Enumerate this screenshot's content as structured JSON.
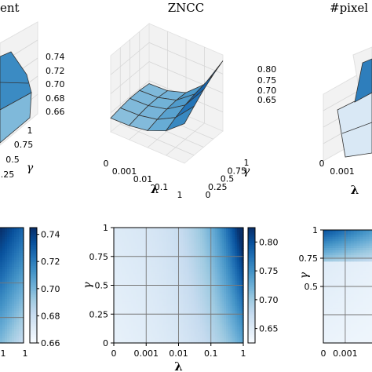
{
  "chart_data": [
    {
      "type": "surface3d",
      "panel": "left",
      "title": "ent",
      "zlim": [
        0.66,
        0.74
      ],
      "ztick_labels": [
        "0.74",
        "0.72",
        "0.70",
        "0.68",
        "0.66"
      ],
      "gamma_tick_labels": [
        "1",
        "0.75",
        "0.5",
        "0.25"
      ],
      "gamma_label": "γ",
      "colormap": "Blues"
    },
    {
      "type": "surface3d",
      "panel": "center",
      "title": "ZNCC",
      "xlabel": "λ",
      "ylabel": "γ",
      "x_tick_labels": [
        "0",
        "0.001",
        "0.01",
        "0.1",
        "1"
      ],
      "y_tick_labels": [
        "0",
        "0.25",
        "0.5",
        "0.75",
        "1"
      ],
      "z_tick_labels": [
        "0.80",
        "0.75",
        "0.70",
        "0.65"
      ],
      "zlim": [
        0.62,
        0.82
      ],
      "colormap": "Blues"
    },
    {
      "type": "surface3d",
      "panel": "right",
      "title": "#pixel",
      "x_tick_labels": [
        "0",
        "0.001"
      ],
      "xlabel": "λ",
      "colormap": "Blues"
    },
    {
      "type": "heatmap",
      "panel": "left",
      "colorbar_labels": [
        "0.74",
        "0.72",
        "0.70",
        "0.68",
        "0.66"
      ],
      "clim": [
        0.66,
        0.745
      ],
      "x_tick_labels": [
        "1",
        "1"
      ],
      "colormap": "Blues"
    },
    {
      "type": "heatmap",
      "panel": "center",
      "x_tick_labels": [
        "0",
        "0.001",
        "0.01",
        "0.1",
        "1"
      ],
      "y_tick_labels": [
        "0",
        "0.25",
        "0.5",
        "0.75",
        "1"
      ],
      "xlabel": "λ",
      "ylabel": "γ",
      "colorbar_labels": [
        "0.80",
        "0.75",
        "0.70",
        "0.65"
      ],
      "clim": [
        0.625,
        0.825
      ],
      "colormap": "Blues"
    },
    {
      "type": "heatmap",
      "panel": "right",
      "x_tick_labels": [
        "0",
        "0.001"
      ],
      "y_tick_labels": [
        "1",
        "0.75",
        "0.5"
      ],
      "ylabel": "γ",
      "colormap": "Blues"
    }
  ]
}
